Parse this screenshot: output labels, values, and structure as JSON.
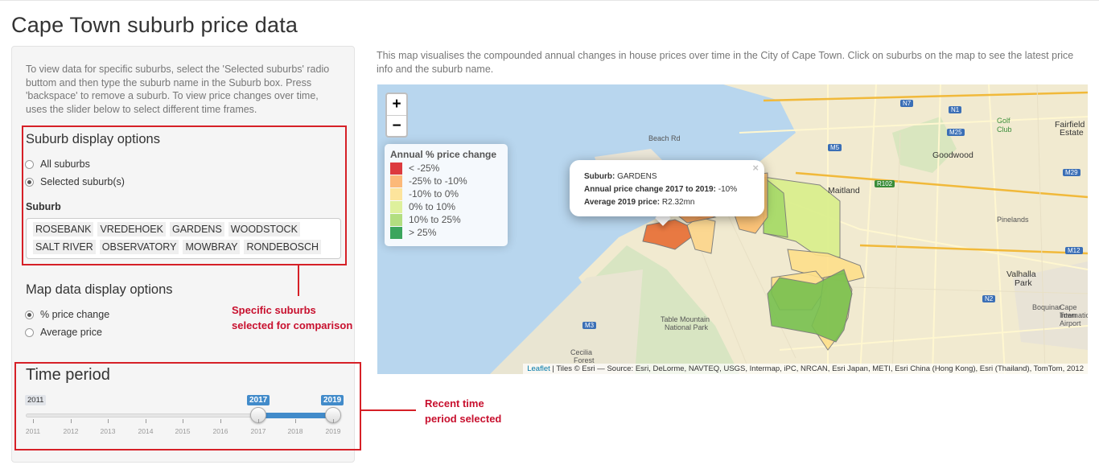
{
  "page": {
    "title": "Cape Town suburb price data"
  },
  "sidebar": {
    "intro": "To view data for specific suburbs, select the 'Selected suburbs' radio buttom and then type the suburb name in the Suburb box. Press 'backspace' to remove a suburb. To view price changes over time, uses the slider below to select different time frames.",
    "suburb_display": {
      "title": "Suburb display options",
      "options": [
        {
          "label": "All suburbs",
          "selected": false
        },
        {
          "label": "Selected suburb(s)",
          "selected": true
        }
      ]
    },
    "suburb_field": {
      "label": "Suburb",
      "selected": [
        "ROSEBANK",
        "VREDEHOEK",
        "GARDENS",
        "WOODSTOCK",
        "SALT RIVER",
        "OBSERVATORY",
        "MOWBRAY",
        "RONDEBOSCH"
      ]
    },
    "map_display": {
      "title": "Map data display options",
      "options": [
        {
          "label": "% price change",
          "selected": true
        },
        {
          "label": "Average price",
          "selected": false
        }
      ]
    },
    "time_period": {
      "title": "Time period",
      "min": "2011",
      "from": "2017",
      "to": "2019",
      "ticks": [
        "2011",
        "2012",
        "2013",
        "2014",
        "2015",
        "2016",
        "2017",
        "2018",
        "2019"
      ]
    }
  },
  "annotations": {
    "suburbs": [
      "Specific suburbs",
      "selected for comparison"
    ],
    "time": [
      "Recent time",
      "period selected"
    ]
  },
  "map": {
    "description": "This map visualises the compounded annual changes in house prices over time in the City of Cape Town. Click on suburbs on the map to see the latest price info and the suburb name.",
    "zoom_in": "+",
    "zoom_out": "−",
    "legend": {
      "title": "Annual % price change",
      "items": [
        {
          "label": "< -25%",
          "color": "#d7191c"
        },
        {
          "label": "-25% to -10%",
          "color": "#fdae61"
        },
        {
          "label": "-10% to 0%",
          "color": "#fee08b"
        },
        {
          "label": "0% to 10%",
          "color": "#d9ef8b"
        },
        {
          "label": "10% to 25%",
          "color": "#a6d96a"
        },
        {
          "label": "> 25%",
          "color": "#1a9641"
        }
      ]
    },
    "popup": {
      "suburb_key": "Suburb:",
      "suburb_val": "GARDENS",
      "change_key": "Annual price change 2017 to 2019:",
      "change_val": "-10%",
      "price_key": "Average 2019 price:",
      "price_val": "R2.32mn",
      "close": "×"
    },
    "attribution_link": "Leaflet",
    "attribution": " | Tiles © Esri — Source: Esri, DeLorme, NAVTEQ, USGS, Intermap, iPC, NRCAN, Esri Japan, METI, Esri China (Hong Kong), Esri (Thailand), TomTom, 2012",
    "labels": {
      "goodwood": "Goodwood",
      "maitland": "Maitland",
      "fairfield": "Fairfield",
      "estate": "Estate",
      "valhalla": "Valhalla",
      "park": "Park",
      "table_mountain": "Table Mountain",
      "national_park": "National Park",
      "pinelands": "Pinelands",
      "golf": "Golf",
      "club": "Club",
      "beach_rd": "Beach Rd",
      "cecilia": "Cecilia",
      "forest": "Forest",
      "boquinar": "Boquinar",
      "cape_town": "Cape Town",
      "intl": "Internatio",
      "airport": "Airport"
    },
    "routes": {
      "n7": "N7",
      "n1": "N1",
      "m25": "M25",
      "r102": "R102",
      "m29": "M29",
      "m12": "M12",
      "n2": "N2",
      "m5": "M5",
      "m3": "M3"
    }
  }
}
